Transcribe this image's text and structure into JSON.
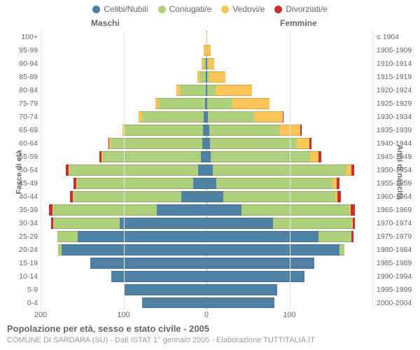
{
  "legend": [
    {
      "label": "Celibi/Nubili",
      "color": "#4f81a4"
    },
    {
      "label": "Coniugati/e",
      "color": "#aed07c"
    },
    {
      "label": "Vedovi/e",
      "color": "#fbc55a"
    },
    {
      "label": "Divorziati/e",
      "color": "#c92f2f"
    }
  ],
  "columns": {
    "left": "Maschi",
    "right": "Femmine"
  },
  "axis_left_title": "Fasce di età",
  "axis_right_title": "Anni di nascita",
  "x_ticks_left": [
    200,
    100,
    0
  ],
  "x_ticks_right": [
    100
  ],
  "x_max": 200,
  "title": "Popolazione per età, sesso e stato civile - 2005",
  "subtitle": "COMUNE DI SARDARA (SU) - Dati ISTAT 1° gennaio 2005 - Elaborazione TUTTITALIA.IT",
  "age_labels": [
    "100+",
    "95-99",
    "90-94",
    "85-89",
    "80-84",
    "75-79",
    "70-74",
    "65-69",
    "60-64",
    "55-59",
    "50-54",
    "45-49",
    "40-44",
    "35-39",
    "30-34",
    "25-29",
    "20-24",
    "15-19",
    "10-14",
    "5-9",
    "0-4"
  ],
  "birth_labels": [
    "≤ 1904",
    "1905-1909",
    "1910-1914",
    "1915-1919",
    "1920-1924",
    "1925-1929",
    "1930-1934",
    "1935-1939",
    "1940-1944",
    "1945-1949",
    "1950-1954",
    "1955-1959",
    "1960-1964",
    "1965-1969",
    "1970-1974",
    "1975-1979",
    "1980-1984",
    "1985-1989",
    "1990-1994",
    "1995-1999",
    "2000-2004"
  ],
  "colors": {
    "celibi": "#4f81a4",
    "coniugati": "#aed07c",
    "vedovi": "#fbc55a",
    "divorziati": "#c92f2f",
    "grid": "#e6e6e6",
    "text": "#666666",
    "background": "#ffffff"
  },
  "fontsize": {
    "legend": 12,
    "ylabel": 10.5,
    "xtick": 11,
    "title": 13,
    "subtitle": 11,
    "axis_title": 11,
    "col_title": 12
  },
  "rows": [
    {
      "m": [
        0,
        0,
        0,
        0
      ],
      "f": [
        0,
        0,
        1,
        0
      ]
    },
    {
      "m": [
        0,
        0,
        3,
        0
      ],
      "f": [
        0,
        0,
        5,
        0
      ]
    },
    {
      "m": [
        1,
        2,
        3,
        0
      ],
      "f": [
        1,
        1,
        7,
        0
      ]
    },
    {
      "m": [
        1,
        7,
        3,
        0
      ],
      "f": [
        1,
        2,
        20,
        0
      ]
    },
    {
      "m": [
        1,
        30,
        5,
        0
      ],
      "f": [
        1,
        10,
        44,
        0
      ]
    },
    {
      "m": [
        2,
        55,
        5,
        0
      ],
      "f": [
        1,
        30,
        45,
        0
      ]
    },
    {
      "m": [
        3,
        75,
        4,
        0
      ],
      "f": [
        2,
        55,
        35,
        1
      ]
    },
    {
      "m": [
        4,
        95,
        2,
        0
      ],
      "f": [
        3,
        85,
        25,
        2
      ]
    },
    {
      "m": [
        5,
        110,
        2,
        1
      ],
      "f": [
        4,
        105,
        15,
        3
      ]
    },
    {
      "m": [
        7,
        118,
        2,
        2
      ],
      "f": [
        5,
        120,
        10,
        3
      ]
    },
    {
      "m": [
        10,
        155,
        1,
        4
      ],
      "f": [
        8,
        160,
        7,
        3
      ]
    },
    {
      "m": [
        16,
        140,
        1,
        3
      ],
      "f": [
        12,
        140,
        5,
        3
      ]
    },
    {
      "m": [
        30,
        130,
        1,
        4
      ],
      "f": [
        20,
        135,
        3,
        4
      ]
    },
    {
      "m": [
        60,
        125,
        1,
        4
      ],
      "f": [
        42,
        130,
        2,
        5
      ]
    },
    {
      "m": [
        105,
        80,
        0,
        2
      ],
      "f": [
        80,
        95,
        1,
        3
      ]
    },
    {
      "m": [
        155,
        25,
        0,
        0
      ],
      "f": [
        135,
        40,
        0,
        2
      ]
    },
    {
      "m": [
        175,
        4,
        0,
        0
      ],
      "f": [
        160,
        6,
        0,
        0
      ]
    },
    {
      "m": [
        140,
        0,
        0,
        0
      ],
      "f": [
        130,
        0,
        0,
        0
      ]
    },
    {
      "m": [
        115,
        0,
        0,
        0
      ],
      "f": [
        118,
        0,
        0,
        0
      ]
    },
    {
      "m": [
        100,
        0,
        0,
        0
      ],
      "f": [
        85,
        0,
        0,
        0
      ]
    },
    {
      "m": [
        78,
        0,
        0,
        0
      ],
      "f": [
        82,
        0,
        0,
        0
      ]
    }
  ]
}
